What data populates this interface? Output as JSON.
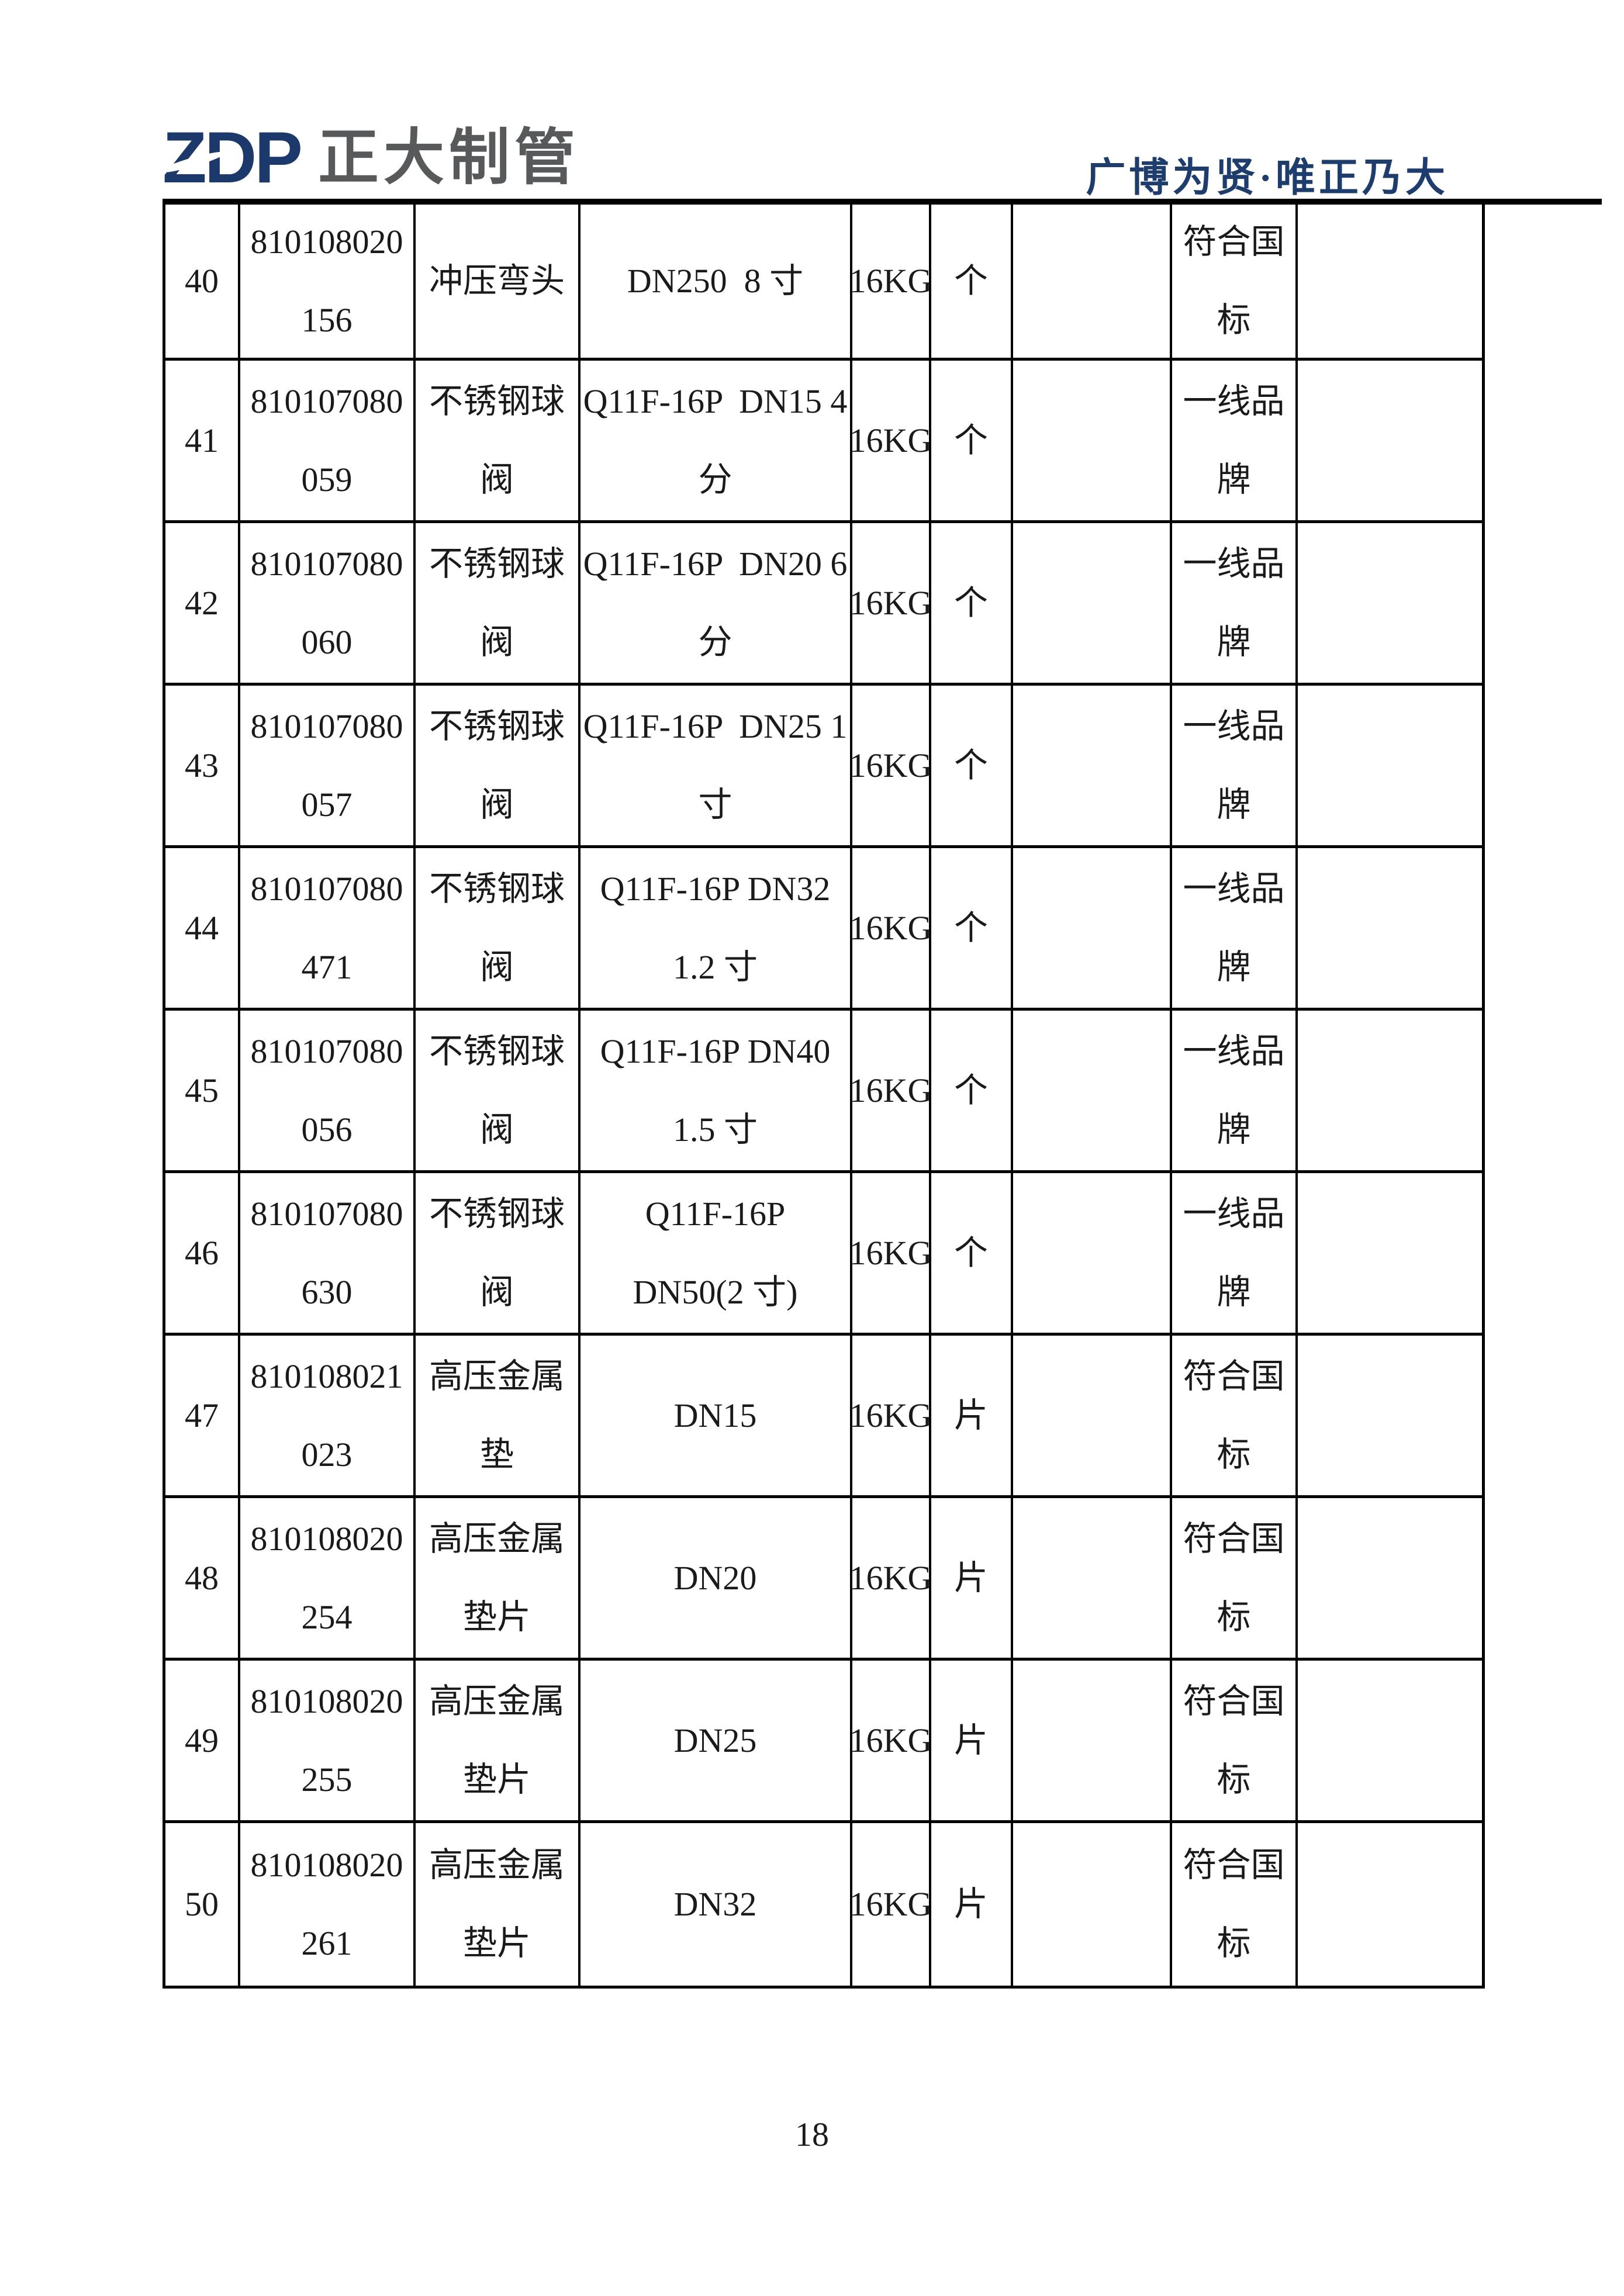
{
  "header": {
    "logo_zdp": "ZDP",
    "logo_name": "正大制管",
    "slogan": "广博为贤·唯正乃大"
  },
  "colors": {
    "logo_navy": "#1b3a6b",
    "logo_gray": "#58595b",
    "slogan_navy": "#1c3d6e",
    "border_black": "#000000"
  },
  "table": {
    "rows": [
      {
        "num": "40",
        "code": [
          "810108020",
          "156"
        ],
        "name": [
          "冲压弯头"
        ],
        "spec": [
          "DN250  8 寸"
        ],
        "pressure": "16KG",
        "unit": "个",
        "qty": "",
        "remark": [
          "符合国",
          "标"
        ],
        "extra": ""
      },
      {
        "num": "41",
        "code": [
          "810107080",
          "059"
        ],
        "name": [
          "不锈钢球",
          "阀"
        ],
        "spec": [
          "Q11F-16P  DN15 4",
          "分"
        ],
        "pressure": "16KG",
        "unit": "个",
        "qty": "",
        "remark": [
          "一线品",
          "牌"
        ],
        "extra": ""
      },
      {
        "num": "42",
        "code": [
          "810107080",
          "060"
        ],
        "name": [
          "不锈钢球",
          "阀"
        ],
        "spec": [
          "Q11F-16P  DN20 6",
          "分"
        ],
        "pressure": "16KG",
        "unit": "个",
        "qty": "",
        "remark": [
          "一线品",
          "牌"
        ],
        "extra": ""
      },
      {
        "num": "43",
        "code": [
          "810107080",
          "057"
        ],
        "name": [
          "不锈钢球",
          "阀"
        ],
        "spec": [
          "Q11F-16P  DN25 1",
          "寸"
        ],
        "pressure": "16KG",
        "unit": "个",
        "qty": "",
        "remark": [
          "一线品",
          "牌"
        ],
        "extra": ""
      },
      {
        "num": "44",
        "code": [
          "810107080",
          "471"
        ],
        "name": [
          "不锈钢球",
          "阀"
        ],
        "spec": [
          "Q11F-16P DN32",
          "1.2 寸"
        ],
        "pressure": "16KG",
        "unit": "个",
        "qty": "",
        "remark": [
          "一线品",
          "牌"
        ],
        "extra": ""
      },
      {
        "num": "45",
        "code": [
          "810107080",
          "056"
        ],
        "name": [
          "不锈钢球",
          "阀"
        ],
        "spec": [
          "Q11F-16P DN40",
          "1.5 寸"
        ],
        "pressure": "16KG",
        "unit": "个",
        "qty": "",
        "remark": [
          "一线品",
          "牌"
        ],
        "extra": ""
      },
      {
        "num": "46",
        "code": [
          "810107080",
          "630"
        ],
        "name": [
          "不锈钢球",
          "阀"
        ],
        "spec": [
          "Q11F-16P",
          "DN50(2 寸)"
        ],
        "pressure": "16KG",
        "unit": "个",
        "qty": "",
        "remark": [
          "一线品",
          "牌"
        ],
        "extra": ""
      },
      {
        "num": "47",
        "code": [
          "810108021",
          "023"
        ],
        "name": [
          "高压金属",
          "垫"
        ],
        "spec": [
          "DN15"
        ],
        "pressure": "16KG",
        "unit": "片",
        "qty": "",
        "remark": [
          "符合国",
          "标"
        ],
        "extra": ""
      },
      {
        "num": "48",
        "code": [
          "810108020",
          "254"
        ],
        "name": [
          "高压金属",
          "垫片"
        ],
        "spec": [
          "DN20"
        ],
        "pressure": "16KG",
        "unit": "片",
        "qty": "",
        "remark": [
          "符合国",
          "标"
        ],
        "extra": ""
      },
      {
        "num": "49",
        "code": [
          "810108020",
          "255"
        ],
        "name": [
          "高压金属",
          "垫片"
        ],
        "spec": [
          "DN25"
        ],
        "pressure": "16KG",
        "unit": "片",
        "qty": "",
        "remark": [
          "符合国",
          "标"
        ],
        "extra": ""
      },
      {
        "num": "50",
        "code": [
          "810108020",
          "261"
        ],
        "name": [
          "高压金属",
          "垫片"
        ],
        "spec": [
          "DN32"
        ],
        "pressure": "16KG",
        "unit": "片",
        "qty": "",
        "remark": [
          "符合国",
          "标"
        ],
        "extra": ""
      }
    ]
  },
  "footer": {
    "page_number": "18"
  }
}
